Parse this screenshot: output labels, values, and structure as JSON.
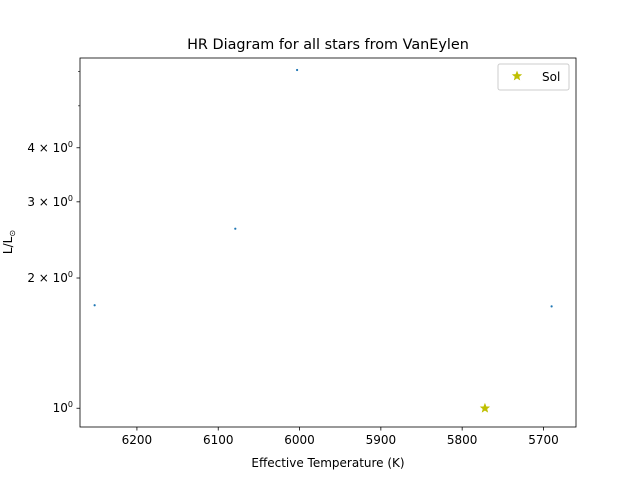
{
  "chart_data": {
    "type": "scatter",
    "title": "HR Diagram for all stars from VanEylen",
    "xlabel": "Effective Temperature (K)",
    "ylabel_main": "L/L",
    "ylabel_sub": "⊙",
    "x_inverted": true,
    "xlim": [
      6270,
      5660
    ],
    "x_ticks": [
      6200,
      6100,
      6000,
      5900,
      5800,
      5700
    ],
    "y_scale": "log",
    "ylim": [
      0.905,
      6.45
    ],
    "y_ticks": [
      {
        "value": 1,
        "label": "10^0",
        "base": "10",
        "exp": "0"
      },
      {
        "value": 2,
        "label": "2×10^0",
        "base": "2 × 10",
        "exp": "0"
      },
      {
        "value": 3,
        "label": "3×10^0",
        "base": "3 × 10",
        "exp": "0"
      },
      {
        "value": 4,
        "label": "4×10^0",
        "base": "4 × 10",
        "exp": "0"
      }
    ],
    "y_minor_ticks": [
      5,
      6
    ],
    "grid": false,
    "legend": {
      "placement": "upper right"
    },
    "series": [
      {
        "marker": "point",
        "color": "#1f77b4",
        "points": [
          {
            "x": 6003,
            "y": 6.05
          },
          {
            "x": 6079,
            "y": 2.6
          },
          {
            "x": 6252,
            "y": 1.73
          },
          {
            "x": 5690,
            "y": 1.72
          }
        ]
      },
      {
        "name": "Sol",
        "marker": "star",
        "color": "#bfbf00",
        "points": [
          {
            "x": 5772,
            "y": 1.0
          }
        ]
      }
    ]
  }
}
